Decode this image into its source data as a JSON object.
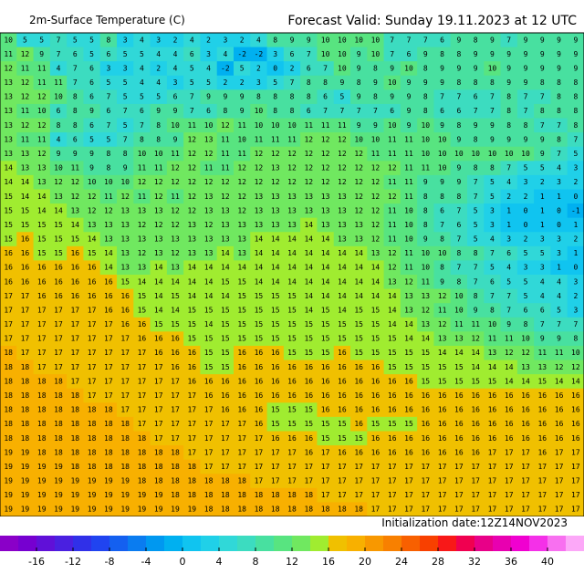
{
  "header": {
    "title": "2m-Surface Temperature (C)",
    "valid": "Forecast Valid:  Sunday 19.11.2023 at 12 UTC"
  },
  "map": {
    "rows": [
      [
        10,
        5,
        5,
        7,
        5,
        5,
        8,
        3,
        4,
        3,
        2,
        4,
        2,
        3,
        2,
        4,
        8,
        9,
        9,
        10,
        10,
        10,
        10,
        7,
        7,
        7,
        6,
        9,
        8,
        9,
        7,
        9,
        9,
        9,
        9
      ],
      [
        11,
        12,
        9,
        7,
        6,
        5,
        6,
        5,
        5,
        4,
        4,
        6,
        3,
        4,
        -2,
        -2,
        3,
        6,
        7,
        10,
        10,
        9,
        10,
        7,
        6,
        9,
        8,
        8,
        9,
        9,
        9,
        9,
        9,
        9,
        9
      ],
      [
        12,
        11,
        11,
        4,
        7,
        6,
        3,
        3,
        4,
        2,
        4,
        5,
        4,
        -2,
        5,
        2,
        0,
        2,
        6,
        7,
        10,
        9,
        8,
        9,
        10,
        8,
        9,
        9,
        9,
        10,
        9,
        9,
        9,
        9,
        9
      ],
      [
        13,
        12,
        11,
        11,
        7,
        6,
        5,
        5,
        4,
        4,
        3,
        5,
        5,
        2,
        2,
        3,
        5,
        7,
        8,
        8,
        9,
        8,
        9,
        10,
        9,
        9,
        9,
        8,
        8,
        8,
        9,
        9,
        8,
        8,
        8
      ],
      [
        13,
        12,
        12,
        10,
        8,
        6,
        7,
        5,
        5,
        5,
        6,
        7,
        9,
        9,
        9,
        8,
        8,
        8,
        8,
        6,
        5,
        9,
        8,
        9,
        9,
        8,
        7,
        7,
        6,
        7,
        8,
        7,
        7,
        8,
        8
      ],
      [
        13,
        11,
        10,
        6,
        8,
        9,
        6,
        7,
        6,
        9,
        9,
        7,
        6,
        8,
        9,
        10,
        8,
        8,
        6,
        7,
        7,
        7,
        7,
        6,
        9,
        8,
        6,
        6,
        7,
        7,
        8,
        7,
        8,
        8,
        8
      ],
      [
        13,
        12,
        12,
        8,
        8,
        6,
        7,
        5,
        7,
        8,
        10,
        11,
        10,
        12,
        11,
        10,
        10,
        10,
        11,
        11,
        11,
        9,
        9,
        10,
        9,
        10,
        9,
        8,
        9,
        9,
        8,
        8,
        7,
        7,
        8
      ],
      [
        13,
        11,
        11,
        4,
        6,
        5,
        5,
        7,
        8,
        8,
        9,
        12,
        13,
        11,
        10,
        11,
        11,
        11,
        12,
        12,
        12,
        10,
        10,
        11,
        11,
        10,
        10,
        9,
        8,
        9,
        9,
        9,
        9,
        8,
        7
      ],
      [
        13,
        13,
        12,
        9,
        9,
        9,
        8,
        8,
        10,
        10,
        11,
        12,
        12,
        11,
        11,
        12,
        12,
        12,
        12,
        12,
        12,
        12,
        11,
        11,
        11,
        10,
        10,
        10,
        10,
        10,
        10,
        10,
        9,
        7,
        5
      ],
      [
        14,
        13,
        13,
        10,
        11,
        9,
        8,
        9,
        11,
        11,
        12,
        12,
        11,
        11,
        12,
        12,
        13,
        12,
        12,
        12,
        12,
        12,
        12,
        12,
        11,
        11,
        10,
        9,
        8,
        8,
        7,
        5,
        5,
        4,
        3
      ],
      [
        14,
        14,
        13,
        12,
        12,
        10,
        10,
        10,
        12,
        12,
        12,
        12,
        12,
        12,
        12,
        12,
        12,
        12,
        12,
        12,
        12,
        12,
        12,
        11,
        11,
        9,
        9,
        9,
        7,
        5,
        4,
        3,
        2,
        3,
        2
      ],
      [
        15,
        14,
        14,
        13,
        12,
        12,
        11,
        12,
        11,
        12,
        11,
        12,
        13,
        12,
        12,
        13,
        13,
        13,
        13,
        13,
        13,
        12,
        12,
        12,
        11,
        8,
        8,
        8,
        7,
        5,
        2,
        2,
        1,
        1,
        0
      ],
      [
        15,
        15,
        14,
        14,
        13,
        12,
        12,
        13,
        13,
        13,
        12,
        12,
        13,
        13,
        12,
        13,
        13,
        13,
        13,
        13,
        13,
        12,
        12,
        11,
        10,
        8,
        6,
        7,
        5,
        3,
        1,
        0,
        1,
        0,
        -1
      ],
      [
        15,
        15,
        15,
        15,
        14,
        13,
        13,
        13,
        12,
        12,
        12,
        13,
        12,
        13,
        13,
        13,
        13,
        13,
        14,
        13,
        13,
        13,
        12,
        11,
        10,
        8,
        7,
        6,
        5,
        3,
        1,
        0,
        1,
        0,
        1
      ],
      [
        15,
        16,
        15,
        15,
        15,
        14,
        13,
        13,
        13,
        13,
        13,
        13,
        13,
        13,
        13,
        14,
        14,
        14,
        14,
        14,
        13,
        13,
        12,
        11,
        10,
        9,
        8,
        7,
        5,
        4,
        3,
        2,
        3,
        3,
        2
      ],
      [
        16,
        16,
        15,
        15,
        16,
        15,
        14,
        13,
        12,
        13,
        12,
        13,
        13,
        14,
        13,
        14,
        14,
        14,
        14,
        14,
        14,
        14,
        13,
        12,
        11,
        10,
        10,
        8,
        8,
        7,
        6,
        5,
        5,
        3,
        1
      ],
      [
        16,
        16,
        16,
        16,
        16,
        16,
        14,
        13,
        13,
        14,
        13,
        14,
        14,
        14,
        14,
        14,
        14,
        14,
        14,
        14,
        14,
        14,
        14,
        12,
        11,
        10,
        8,
        7,
        7,
        5,
        4,
        3,
        3,
        1,
        0
      ],
      [
        16,
        16,
        16,
        16,
        16,
        16,
        16,
        15,
        14,
        14,
        14,
        14,
        14,
        15,
        15,
        14,
        14,
        14,
        14,
        14,
        14,
        14,
        14,
        13,
        12,
        11,
        9,
        8,
        7,
        6,
        5,
        5,
        4,
        4,
        3
      ],
      [
        17,
        17,
        16,
        16,
        16,
        16,
        16,
        16,
        15,
        14,
        15,
        14,
        14,
        14,
        15,
        15,
        15,
        15,
        14,
        14,
        14,
        14,
        14,
        14,
        13,
        13,
        12,
        10,
        8,
        7,
        7,
        5,
        4,
        4,
        2
      ],
      [
        17,
        17,
        17,
        17,
        17,
        17,
        16,
        16,
        15,
        14,
        14,
        15,
        15,
        15,
        15,
        15,
        15,
        15,
        14,
        15,
        14,
        15,
        15,
        14,
        13,
        12,
        11,
        10,
        9,
        8,
        7,
        6,
        6,
        5,
        3
      ],
      [
        17,
        17,
        17,
        17,
        17,
        17,
        17,
        16,
        16,
        15,
        15,
        15,
        14,
        15,
        15,
        15,
        15,
        15,
        15,
        15,
        15,
        15,
        15,
        14,
        14,
        13,
        12,
        11,
        11,
        10,
        9,
        8,
        7,
        7,
        7
      ],
      [
        17,
        17,
        17,
        17,
        17,
        17,
        17,
        17,
        16,
        16,
        16,
        15,
        15,
        15,
        15,
        15,
        15,
        15,
        15,
        15,
        15,
        15,
        15,
        15,
        14,
        14,
        13,
        13,
        12,
        11,
        11,
        10,
        9,
        9,
        8
      ],
      [
        18,
        17,
        17,
        17,
        17,
        17,
        17,
        17,
        17,
        16,
        16,
        16,
        15,
        15,
        16,
        16,
        16,
        15,
        15,
        15,
        16,
        15,
        15,
        15,
        15,
        15,
        14,
        14,
        14,
        13,
        12,
        12,
        11,
        11,
        10
      ],
      [
        18,
        18,
        17,
        17,
        17,
        17,
        17,
        17,
        17,
        17,
        16,
        16,
        15,
        15,
        16,
        16,
        16,
        16,
        16,
        16,
        16,
        16,
        16,
        15,
        15,
        15,
        15,
        15,
        14,
        14,
        14,
        13,
        13,
        12,
        12
      ],
      [
        18,
        18,
        18,
        18,
        17,
        17,
        17,
        17,
        17,
        17,
        17,
        16,
        16,
        16,
        16,
        16,
        16,
        16,
        16,
        16,
        16,
        16,
        16,
        16,
        16,
        15,
        15,
        15,
        15,
        15,
        14,
        14,
        15,
        14,
        14
      ],
      [
        18,
        18,
        18,
        18,
        18,
        17,
        17,
        17,
        17,
        17,
        17,
        17,
        16,
        16,
        16,
        16,
        16,
        16,
        16,
        16,
        16,
        16,
        16,
        16,
        16,
        16,
        16,
        16,
        16,
        16,
        16,
        16,
        16,
        16,
        16
      ],
      [
        18,
        18,
        18,
        18,
        18,
        18,
        18,
        17,
        17,
        17,
        17,
        17,
        17,
        16,
        16,
        16,
        15,
        15,
        15,
        16,
        16,
        16,
        16,
        16,
        16,
        16,
        16,
        16,
        16,
        16,
        16,
        16,
        16,
        16,
        16
      ],
      [
        18,
        18,
        18,
        18,
        18,
        18,
        18,
        18,
        17,
        17,
        17,
        17,
        17,
        17,
        17,
        16,
        15,
        15,
        15,
        15,
        15,
        16,
        15,
        15,
        15,
        16,
        16,
        16,
        16,
        16,
        16,
        16,
        16,
        16,
        16
      ],
      [
        18,
        18,
        18,
        18,
        18,
        18,
        18,
        18,
        18,
        17,
        17,
        17,
        17,
        17,
        17,
        17,
        16,
        16,
        16,
        15,
        15,
        15,
        16,
        16,
        16,
        16,
        16,
        16,
        16,
        16,
        16,
        16,
        16,
        16,
        16
      ],
      [
        19,
        19,
        18,
        18,
        18,
        18,
        18,
        18,
        18,
        18,
        18,
        17,
        17,
        17,
        17,
        17,
        17,
        17,
        16,
        17,
        16,
        16,
        16,
        16,
        16,
        16,
        16,
        16,
        16,
        17,
        17,
        17,
        16,
        17,
        17
      ],
      [
        19,
        19,
        19,
        19,
        18,
        18,
        18,
        18,
        18,
        18,
        18,
        18,
        17,
        17,
        17,
        17,
        17,
        17,
        17,
        17,
        17,
        17,
        17,
        17,
        17,
        17,
        17,
        17,
        17,
        17,
        17,
        17,
        17,
        17,
        17
      ],
      [
        19,
        19,
        19,
        19,
        19,
        19,
        19,
        19,
        18,
        18,
        18,
        18,
        18,
        18,
        18,
        17,
        17,
        17,
        17,
        17,
        17,
        17,
        17,
        17,
        17,
        17,
        17,
        17,
        17,
        17,
        17,
        17,
        17,
        17,
        17
      ],
      [
        19,
        19,
        19,
        19,
        19,
        19,
        19,
        19,
        19,
        19,
        18,
        18,
        18,
        18,
        18,
        18,
        18,
        18,
        18,
        17,
        17,
        17,
        17,
        17,
        17,
        17,
        17,
        17,
        17,
        17,
        17,
        17,
        17,
        17,
        17
      ],
      [
        19,
        19,
        19,
        19,
        19,
        19,
        19,
        19,
        19,
        19,
        19,
        19,
        18,
        18,
        18,
        18,
        18,
        18,
        18,
        18,
        18,
        18,
        17,
        17,
        17,
        17,
        17,
        17,
        17,
        17,
        17,
        17,
        17,
        17,
        17
      ]
    ]
  },
  "initialization": "Initialization date:12Z14NOV2023",
  "legend": {
    "lim": [
      -20,
      44
    ],
    "colors": [
      "#8a00c8",
      "#7600d0",
      "#6010d8",
      "#4a20e0",
      "#3030e8",
      "#2044f0",
      "#1460f0",
      "#0a7cf0",
      "#0098f0",
      "#00b0f0",
      "#10c4f0",
      "#20d0e8",
      "#30d8d8",
      "#3cdcc0",
      "#48e0a0",
      "#58e480",
      "#70e860",
      "#a0ec30",
      "#f0c000",
      "#f8b000",
      "#f89800",
      "#f88000",
      "#f86000",
      "#f84000",
      "#f81818",
      "#f00050",
      "#e80088",
      "#e800b0",
      "#f000d0",
      "#f430e8",
      "#f870f0",
      "#fca8f8"
    ],
    "ticks": [
      -16,
      -12,
      -8,
      -4,
      0,
      4,
      8,
      12,
      16,
      20,
      24,
      28,
      32,
      36,
      40
    ]
  }
}
